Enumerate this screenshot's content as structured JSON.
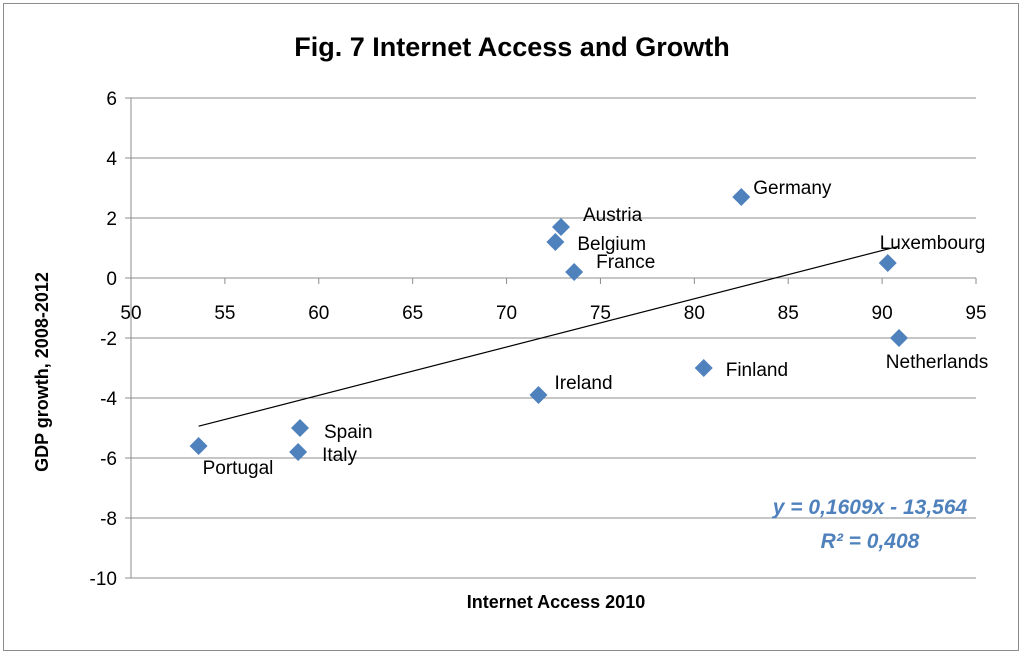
{
  "chart_data": {
    "type": "scatter",
    "title": "Fig. 7 Internet Access and Growth",
    "xlabel": "Internet Access  2010",
    "ylabel": "GDP growth, 2008-2012",
    "xlim": [
      50,
      95
    ],
    "ylim": [
      -10,
      6
    ],
    "x_ticks": [
      "50",
      "55",
      "60",
      "65",
      "70",
      "75",
      "80",
      "85",
      "90",
      "95"
    ],
    "y_ticks": [
      "6",
      "4",
      "2",
      "0",
      "-2",
      "-4",
      "-6",
      "-8",
      "-10"
    ],
    "grid": "horizontal",
    "marker": "diamond",
    "marker_color": "#4f81bd",
    "points": [
      {
        "label": "Portugal",
        "x": 53.6,
        "y": -5.6
      },
      {
        "label": "Spain",
        "x": 59.0,
        "y": -5.0
      },
      {
        "label": "Italy",
        "x": 58.9,
        "y": -5.8
      },
      {
        "label": "Ireland",
        "x": 71.7,
        "y": -3.9
      },
      {
        "label": "Austria",
        "x": 72.9,
        "y": 1.7
      },
      {
        "label": "Belgium",
        "x": 72.6,
        "y": 1.2
      },
      {
        "label": "France",
        "x": 73.6,
        "y": 0.2
      },
      {
        "label": "Finland",
        "x": 80.5,
        "y": -3.0
      },
      {
        "label": "Germany",
        "x": 82.5,
        "y": 2.7
      },
      {
        "label": "Luxembourg",
        "x": 90.3,
        "y": 0.5
      },
      {
        "label": "Netherlands",
        "x": 90.9,
        "y": -2.0
      }
    ],
    "trendline": {
      "type": "linear",
      "slope": 0.1609,
      "intercept": -13.564,
      "x_range": [
        53.6,
        90.9
      ],
      "equation": "y = 0,1609x - 13,564",
      "r_squared": "R² = 0,408",
      "color": "#4f81bd"
    }
  }
}
